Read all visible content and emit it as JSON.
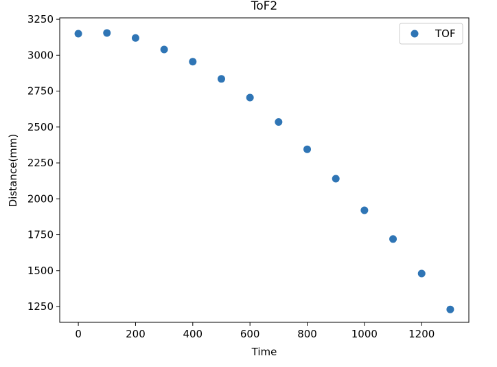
{
  "chart_data": {
    "type": "scatter",
    "title": "ToF2",
    "xlabel": "Time",
    "ylabel": "Distance(mm)",
    "xlim": [
      -65,
      1365
    ],
    "ylim": [
      1140,
      3260
    ],
    "xticks": [
      0,
      200,
      400,
      600,
      800,
      1000,
      1200
    ],
    "yticks": [
      1250,
      1500,
      1750,
      2000,
      2250,
      2500,
      2750,
      3000,
      3250
    ],
    "grid": false,
    "legend": {
      "position": "top-right"
    },
    "series": [
      {
        "name": "TOF",
        "color": "#2f75b5",
        "x": [
          0,
          100,
          200,
          300,
          400,
          500,
          600,
          700,
          800,
          900,
          1000,
          1100,
          1200,
          1300
        ],
        "y": [
          3150,
          3155,
          3120,
          3040,
          2955,
          2835,
          2705,
          2535,
          2345,
          2140,
          1920,
          1720,
          1480,
          1230
        ]
      }
    ]
  }
}
